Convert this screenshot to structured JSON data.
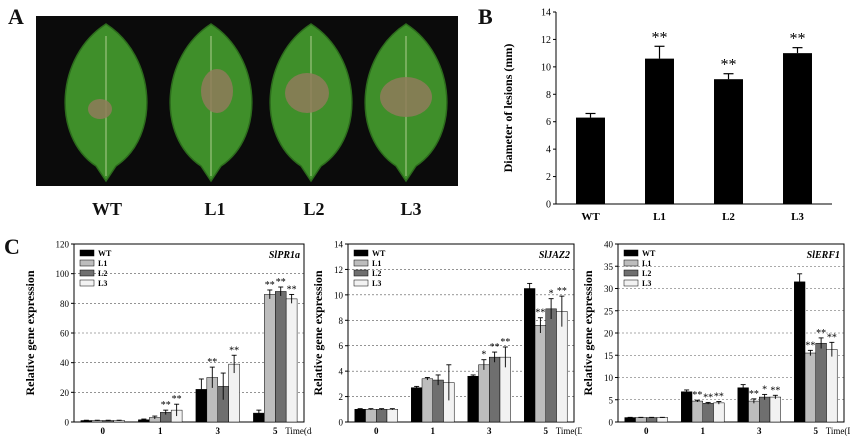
{
  "panels": {
    "a": "A",
    "b": "B",
    "c": "C"
  },
  "photo": {
    "labels": [
      "WT",
      "L1",
      "L2",
      "L3"
    ],
    "leaf_color": "#3f8f2a",
    "lesion_color": "#8f7b5a",
    "background": "#0b0b0b"
  },
  "chart_data": [
    {
      "id": "B",
      "type": "bar",
      "ylabel": "Diameter of lesions (mm)",
      "xlabel": "",
      "categories": [
        "WT",
        "L1",
        "L2",
        "L3"
      ],
      "values": [
        6.3,
        10.6,
        9.1,
        11.0
      ],
      "errors": [
        0.3,
        0.9,
        0.4,
        0.4
      ],
      "significance": [
        "",
        "**",
        "**",
        "**"
      ],
      "ylim": [
        0,
        14
      ],
      "yticks": [
        0,
        2,
        4,
        6,
        8,
        10,
        12,
        14
      ],
      "bar_color": "#000000"
    },
    {
      "id": "C1",
      "type": "bar",
      "title": "SlPR1a",
      "ylabel": "Relative gene expression",
      "xlabel": "Time(days)",
      "categories": [
        "0",
        "1",
        "3",
        "5"
      ],
      "ylim": [
        0,
        120
      ],
      "yticks": [
        0,
        20,
        40,
        60,
        80,
        100,
        120
      ],
      "grid": true,
      "legend": "top-left",
      "series": [
        {
          "name": "WT",
          "color": "#000000",
          "values": [
            1,
            1.5,
            22,
            6
          ],
          "errors": [
            0.2,
            0.5,
            7,
            2
          ]
        },
        {
          "name": "L1",
          "color": "#bdbdbd",
          "values": [
            1,
            3,
            30,
            86
          ],
          "errors": [
            0.2,
            1,
            7,
            3
          ]
        },
        {
          "name": "L2",
          "color": "#6f6f6f",
          "values": [
            1,
            6.5,
            24,
            88
          ],
          "errors": [
            0.2,
            1.5,
            9,
            3
          ]
        },
        {
          "name": "L3",
          "color": "#f2f2f2",
          "values": [
            1,
            8,
            39,
            83
          ],
          "errors": [
            0.2,
            4,
            6,
            3
          ]
        }
      ],
      "annotations": [
        {
          "category": "1",
          "series": "L2",
          "text": "**"
        },
        {
          "category": "1",
          "series": "L3",
          "text": "**"
        },
        {
          "category": "3",
          "series": "L1",
          "text": "**"
        },
        {
          "category": "3",
          "series": "L3",
          "text": "**"
        },
        {
          "category": "5",
          "series": "L1",
          "text": "**"
        },
        {
          "category": "5",
          "series": "L2",
          "text": "**"
        },
        {
          "category": "5",
          "series": "L3",
          "text": "**"
        }
      ]
    },
    {
      "id": "C2",
      "type": "bar",
      "title": "SlJAZ2",
      "ylabel": "Relative gene expression",
      "xlabel": "Time(Days",
      "categories": [
        "0",
        "1",
        "3",
        "5"
      ],
      "ylim": [
        0,
        14
      ],
      "yticks": [
        0,
        2,
        4,
        6,
        8,
        10,
        12,
        14
      ],
      "grid": true,
      "legend": "top-left",
      "series": [
        {
          "name": "WT",
          "color": "#000000",
          "values": [
            1,
            2.7,
            3.6,
            10.5
          ],
          "errors": [
            0.05,
            0.1,
            0.1,
            0.4
          ]
        },
        {
          "name": "L1",
          "color": "#bdbdbd",
          "values": [
            1,
            3.4,
            4.5,
            7.6
          ],
          "errors": [
            0.05,
            0.1,
            0.4,
            0.6
          ]
        },
        {
          "name": "L2",
          "color": "#6f6f6f",
          "values": [
            1,
            3.3,
            5.1,
            8.9
          ],
          "errors": [
            0.05,
            0.4,
            0.4,
            0.8
          ]
        },
        {
          "name": "L3",
          "color": "#f2f2f2",
          "values": [
            1,
            3.1,
            5.1,
            8.7
          ],
          "errors": [
            0.05,
            1.4,
            0.8,
            1.2
          ]
        }
      ],
      "annotations": [
        {
          "category": "3",
          "series": "L1",
          "text": "*"
        },
        {
          "category": "3",
          "series": "L2",
          "text": "**"
        },
        {
          "category": "3",
          "series": "L3",
          "text": "**"
        },
        {
          "category": "5",
          "series": "L1",
          "text": "**"
        },
        {
          "category": "5",
          "series": "L2",
          "text": "*"
        },
        {
          "category": "5",
          "series": "L3",
          "text": "**"
        }
      ]
    },
    {
      "id": "C3",
      "type": "bar",
      "title": "SlERF1",
      "ylabel": "Relative gene expression",
      "xlabel": "Time(Days)",
      "categories": [
        "0",
        "1",
        "3",
        "5"
      ],
      "ylim": [
        0,
        40
      ],
      "yticks": [
        0,
        5,
        10,
        15,
        20,
        25,
        30,
        35,
        40
      ],
      "grid": true,
      "legend": "top-left",
      "series": [
        {
          "name": "WT",
          "color": "#000000",
          "values": [
            1,
            6.8,
            7.7,
            31.5
          ],
          "errors": [
            0.05,
            0.4,
            0.7,
            1.8
          ]
        },
        {
          "name": "L1",
          "color": "#bdbdbd",
          "values": [
            1,
            4.7,
            4.7,
            15.5
          ],
          "errors": [
            0.05,
            0.2,
            0.5,
            0.6
          ]
        },
        {
          "name": "L2",
          "color": "#6f6f6f",
          "values": [
            1,
            4.2,
            5.6,
            17.7
          ],
          "errors": [
            0.05,
            0.2,
            0.6,
            1.2
          ]
        },
        {
          "name": "L3",
          "color": "#f2f2f2",
          "values": [
            1,
            4.3,
            5.6,
            16.3
          ],
          "errors": [
            0.05,
            0.3,
            0.4,
            1.6
          ]
        }
      ],
      "annotations": [
        {
          "category": "1",
          "series": "L1",
          "text": "**"
        },
        {
          "category": "1",
          "series": "L2",
          "text": "**"
        },
        {
          "category": "1",
          "series": "L3",
          "text": "**"
        },
        {
          "category": "3",
          "series": "L1",
          "text": "**"
        },
        {
          "category": "3",
          "series": "L2",
          "text": "*"
        },
        {
          "category": "3",
          "series": "L3",
          "text": "**"
        },
        {
          "category": "5",
          "series": "L1",
          "text": "**"
        },
        {
          "category": "5",
          "series": "L2",
          "text": "**"
        },
        {
          "category": "5",
          "series": "L3",
          "text": "**"
        }
      ]
    }
  ]
}
